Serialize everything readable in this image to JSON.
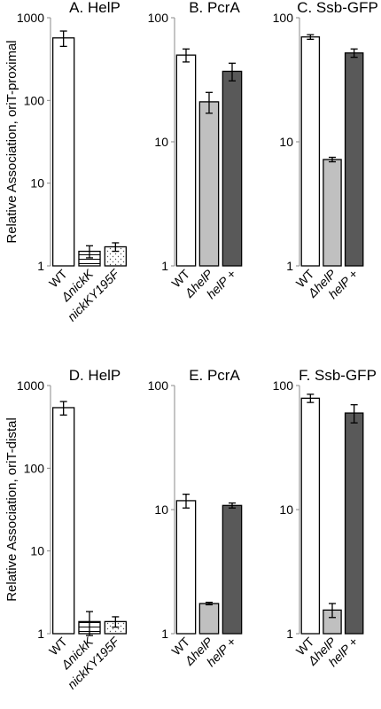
{
  "chart_data": [
    {
      "type": "bar",
      "title": "A.  HelP",
      "ylabel": "Relative Association, oriT-proximal",
      "log": true,
      "categories": [
        "WT",
        "ΔnickK",
        "nickKY195F"
      ],
      "values": [
        570,
        1.5,
        1.7
      ],
      "errors": [
        120,
        0.25,
        0.2
      ],
      "colors": [
        "#ffffff",
        "#ffffff",
        "#ffffff"
      ],
      "patterns": [
        "none",
        "hlines",
        "dots"
      ],
      "ylim": [
        1,
        1000
      ],
      "yticks": [
        1,
        10,
        100,
        1000
      ]
    },
    {
      "type": "bar",
      "title": "B.  PcrA",
      "log": true,
      "categories": [
        "WT",
        "ΔhelP",
        "helP +"
      ],
      "values": [
        50,
        21,
        37
      ],
      "errors": [
        6,
        4,
        6
      ],
      "colors": [
        "#ffffff",
        "#c0c0c0",
        "#595959"
      ],
      "patterns": [
        "none",
        "none",
        "none"
      ],
      "ylim": [
        1,
        100
      ],
      "yticks": [
        1,
        10,
        100
      ]
    },
    {
      "type": "bar",
      "title": "C.  Ssb-GFP",
      "log": true,
      "categories": [
        "WT",
        "ΔhelP",
        "helP +"
      ],
      "values": [
        70,
        7.2,
        52
      ],
      "errors": [
        3,
        0.3,
        4
      ],
      "colors": [
        "#ffffff",
        "#c0c0c0",
        "#595959"
      ],
      "patterns": [
        "none",
        "none",
        "none"
      ],
      "ylim": [
        1,
        100
      ],
      "yticks": [
        1,
        10,
        100
      ]
    },
    {
      "type": "bar",
      "title": "D.  HelP",
      "ylabel": "Relative Association, oriT-distal",
      "log": true,
      "categories": [
        "WT",
        "ΔnickK",
        "nickKY195F"
      ],
      "values": [
        540,
        1.4,
        1.4
      ],
      "errors": [
        100,
        0.45,
        0.2
      ],
      "colors": [
        "#ffffff",
        "#ffffff",
        "#ffffff"
      ],
      "patterns": [
        "none",
        "hlines",
        "dots"
      ],
      "ylim": [
        1,
        1000
      ],
      "yticks": [
        1,
        10,
        100,
        1000
      ]
    },
    {
      "type": "bar",
      "title": "E.  PcrA",
      "log": true,
      "categories": [
        "WT",
        "ΔhelP",
        "helP +"
      ],
      "values": [
        11.8,
        1.75,
        10.8
      ],
      "errors": [
        1.5,
        0.04,
        0.5
      ],
      "colors": [
        "#ffffff",
        "#c0c0c0",
        "#595959"
      ],
      "patterns": [
        "none",
        "none",
        "none"
      ],
      "ylim": [
        1,
        100
      ],
      "yticks": [
        1,
        10,
        100
      ]
    },
    {
      "type": "bar",
      "title": "F.  Ssb-GFP",
      "log": true,
      "categories": [
        "WT",
        "ΔhelP",
        "helP +"
      ],
      "values": [
        79,
        1.55,
        60
      ],
      "errors": [
        6,
        0.2,
        10
      ],
      "colors": [
        "#ffffff",
        "#c0c0c0",
        "#595959"
      ],
      "patterns": [
        "none",
        "none",
        "none"
      ],
      "ylim": [
        1,
        100
      ],
      "yticks": [
        1,
        10,
        100
      ]
    }
  ]
}
